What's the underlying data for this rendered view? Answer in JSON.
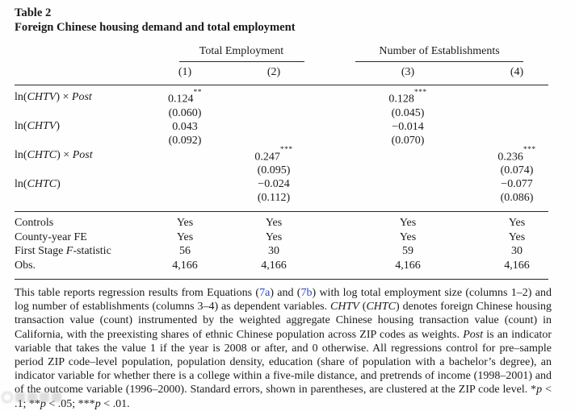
{
  "caption": {
    "number": "Table 2",
    "title": "Foreign Chinese housing demand and total employment"
  },
  "table": {
    "groups": [
      {
        "label": "Total Employment"
      },
      {
        "label": "Number of Establishments"
      }
    ],
    "col_numbers": [
      "(1)",
      "(2)",
      "(3)",
      "(4)"
    ],
    "coef_rows": [
      {
        "label": [
          [
            "ln(",
            false
          ],
          [
            "CHTV",
            true
          ],
          [
            ") × ",
            false
          ],
          [
            "Post",
            true
          ]
        ],
        "coef": [
          "0.124",
          "",
          "0.128",
          ""
        ],
        "stars": [
          "**",
          "",
          "***",
          ""
        ],
        "se": [
          "(0.060)",
          "",
          "(0.045)",
          ""
        ]
      },
      {
        "label": [
          [
            "ln(",
            false
          ],
          [
            "CHTV",
            true
          ],
          [
            ")",
            false
          ]
        ],
        "coef": [
          "0.043",
          "",
          "−0.014",
          ""
        ],
        "stars": [
          "",
          "",
          "",
          ""
        ],
        "se": [
          "(0.092)",
          "",
          "(0.070)",
          ""
        ]
      },
      {
        "label": [
          [
            "ln(",
            false
          ],
          [
            "CHTC",
            true
          ],
          [
            ") × ",
            false
          ],
          [
            "Post",
            true
          ]
        ],
        "coef": [
          "",
          "0.247",
          "",
          "0.236"
        ],
        "stars": [
          "",
          "***",
          "",
          "***"
        ],
        "se": [
          "",
          "(0.095)",
          "",
          "(0.074)"
        ]
      },
      {
        "label": [
          [
            "ln(",
            false
          ],
          [
            "CHTC",
            true
          ],
          [
            ")",
            false
          ]
        ],
        "coef": [
          "",
          "−0.024",
          "",
          "−0.077"
        ],
        "stars": [
          "",
          "",
          "",
          ""
        ],
        "se": [
          "",
          "(0.112)",
          "",
          "(0.086)"
        ]
      }
    ],
    "stat_rows": [
      {
        "label": [
          [
            "Controls",
            false
          ]
        ],
        "values": [
          "Yes",
          "Yes",
          "Yes",
          "Yes"
        ]
      },
      {
        "label": [
          [
            "County-year FE",
            false
          ]
        ],
        "values": [
          "Yes",
          "Yes",
          "Yes",
          "Yes"
        ]
      },
      {
        "label": [
          [
            "First Stage ",
            false
          ],
          [
            "F",
            true
          ],
          [
            "-statistic",
            false
          ]
        ],
        "values": [
          "56",
          "30",
          "59",
          "30"
        ]
      },
      {
        "label": [
          [
            "Obs.",
            false
          ]
        ],
        "values": [
          "4,166",
          "4,166",
          "4,166",
          "4,166"
        ]
      }
    ]
  },
  "footnote": {
    "segments": [
      {
        "t": "This table reports regression results from Equations (",
        "s": "plain"
      },
      {
        "t": "7a",
        "s": "link"
      },
      {
        "t": ") and (",
        "s": "plain"
      },
      {
        "t": "7b",
        "s": "link"
      },
      {
        "t": ") with log total employment size (columns 1–2) and log number of establishments (columns 3–4) as dependent variables. ",
        "s": "plain"
      },
      {
        "t": "CHTV",
        "s": "italic"
      },
      {
        "t": " (",
        "s": "plain"
      },
      {
        "t": "CHTC",
        "s": "italic"
      },
      {
        "t": ") denotes foreign Chinese housing transaction value (count) instrumented by the weighted aggregate Chinese housing transaction value (count) in California, with the preexisting shares of ethnic Chinese population across ZIP codes as weights. ",
        "s": "plain"
      },
      {
        "t": "Post",
        "s": "italic"
      },
      {
        "t": " is an indicator variable that takes the value 1 if the year is 2008 or after, and 0 otherwise. All regressions control for pre–sample period ZIP code–level population, population density, education (share of population with a bachelor’s degree), an indicator variable for whether there is a college within a five-mile distance, and pretrends of income (1998–2001) and of the outcome variable (1996–2000). Standard errors, shown in parentheses, are clustered at the ZIP code level. *",
        "s": "plain"
      },
      {
        "t": "p",
        "s": "italic"
      },
      {
        "t": " < .1; **",
        "s": "plain"
      },
      {
        "t": "p",
        "s": "italic"
      },
      {
        "t": " < .05; ***",
        "s": "plain"
      },
      {
        "t": "p",
        "s": "italic"
      },
      {
        "t": " < .01.",
        "s": "plain"
      }
    ]
  },
  "colors": {
    "link_blue": "#2646c8",
    "text": "#1b1b1b",
    "rule": "#272727"
  },
  "watermark": {
    "name": "illegible-gray-logo-watermark"
  }
}
